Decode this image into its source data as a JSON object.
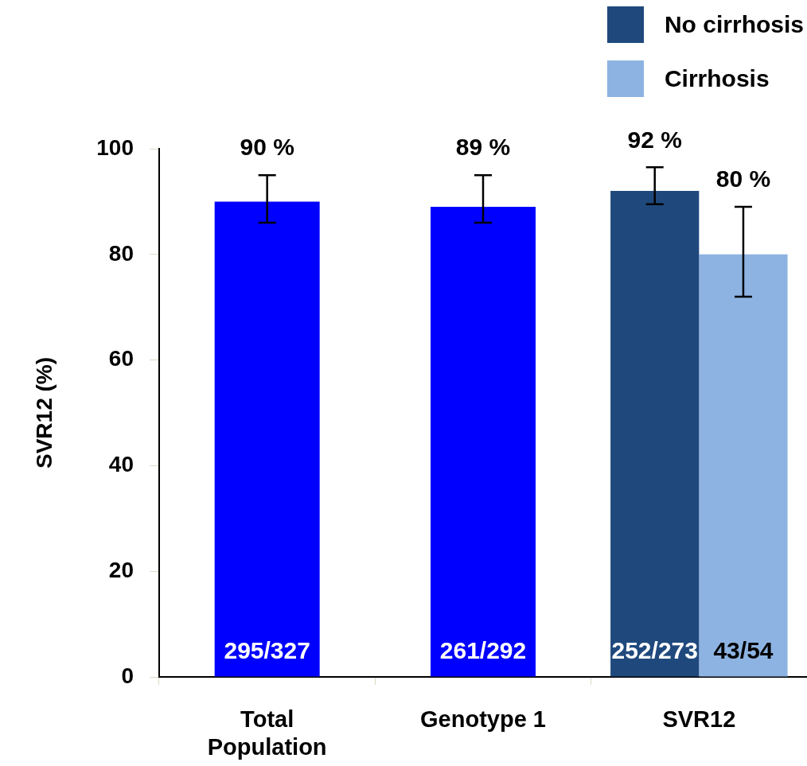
{
  "chart_data": {
    "type": "bar",
    "ylabel": "SVR12 (%)",
    "categories": [
      "Total Population",
      "Genotype 1",
      "SVR12"
    ],
    "series": [
      {
        "color": "#0000ff",
        "values": [
          90,
          89,
          null
        ],
        "errors": [
          [
            86,
            95
          ],
          [
            86,
            95
          ],
          null
        ],
        "value_labels": [
          "90 %",
          "89 %",
          null
        ]
      },
      {
        "name": "No cirrhosis",
        "color": "#1f497d",
        "values": [
          null,
          null,
          92
        ],
        "errors": [
          null,
          null,
          [
            89.5,
            96.5
          ]
        ],
        "value_labels": [
          null,
          null,
          "92 %"
        ]
      },
      {
        "name": "Cirrhosis",
        "color": "#8db3e2",
        "values": [
          null,
          null,
          80
        ],
        "errors": [
          null,
          null,
          [
            72,
            89
          ]
        ],
        "value_labels": [
          null,
          null,
          "80 %"
        ]
      }
    ],
    "ylim": [
      0,
      100
    ],
    "yticks": [
      0,
      20,
      40,
      60,
      80,
      100
    ],
    "legend": "top right",
    "annotations": [
      "295/327",
      "261/292",
      "252/273",
      "43/54"
    ]
  }
}
